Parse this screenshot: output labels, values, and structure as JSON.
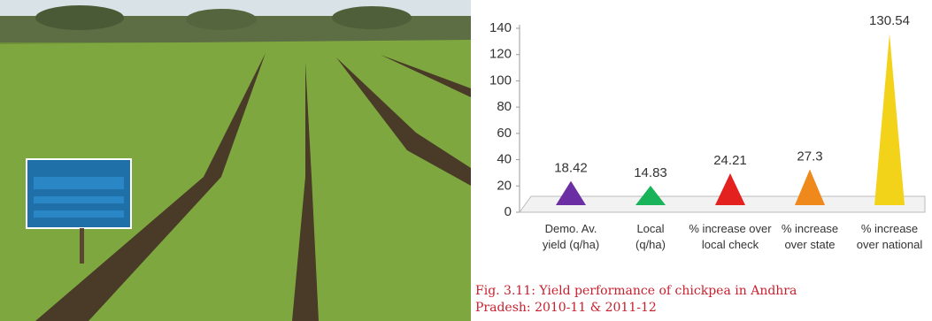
{
  "chart_data": {
    "type": "pyramid",
    "categories": [
      "Demo. Av.\nyield (q/ha)",
      "Local\n(q/ha)",
      "% increase over\nlocal check",
      "% increase\nover state",
      "% increase\nover national"
    ],
    "values": [
      18.42,
      14.83,
      24.21,
      27.3,
      130.54
    ],
    "colors": [
      "#6b2fa3",
      "#19b35a",
      "#e3211f",
      "#f0891b",
      "#f3d21a"
    ],
    "ylim": [
      0,
      140
    ],
    "yticks": [
      0,
      20,
      40,
      60,
      80,
      100,
      120,
      140
    ],
    "caption": "Fig. 3.11: Yield performance of chickpea in Andhra\nPradesh: 2010-11 & 2011-12"
  }
}
